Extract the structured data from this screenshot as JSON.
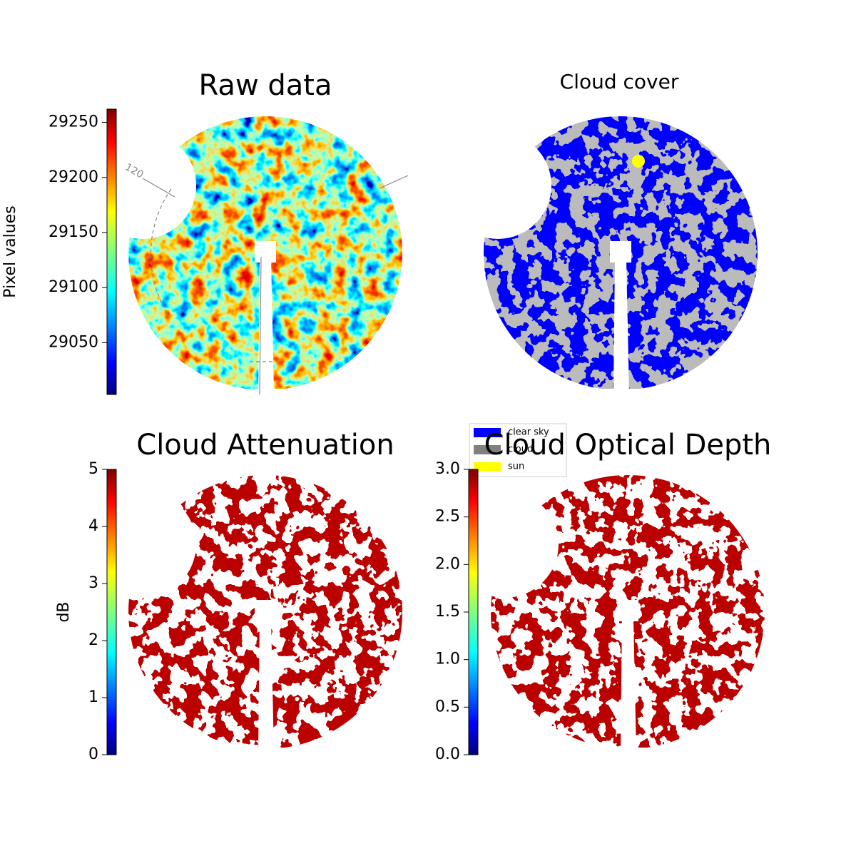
{
  "chart_data": [
    {
      "type": "image",
      "title": "Raw data",
      "colorbar_label": "Pixel values",
      "colormap": "jet",
      "clim": [
        29003,
        29262
      ],
      "cticks": [
        29050,
        29100,
        29150,
        29200,
        29250
      ],
      "annotations": [
        "120"
      ]
    },
    {
      "type": "image",
      "title": "Cloud cover",
      "legend": [
        {
          "name": "clear sky",
          "color": "#0000ff"
        },
        {
          "name": "cloud",
          "color": "#808080"
        },
        {
          "name": "sun",
          "color": "#ffff00"
        }
      ]
    },
    {
      "type": "image",
      "title": "Cloud Attenuation",
      "colorbar_label": "dB",
      "colormap": "jet",
      "clim": [
        0,
        5
      ],
      "cticks": [
        0,
        1,
        2,
        3,
        4,
        5
      ]
    },
    {
      "type": "image",
      "title": "Cloud Optical Depth",
      "colormap": "jet",
      "clim": [
        0,
        3
      ],
      "cticks": [
        {
          "value": 0,
          "label": "0.0"
        },
        0.5,
        {
          "value": 1,
          "label": "1.0"
        },
        1.5,
        {
          "value": 2,
          "label": "2.0"
        },
        2.5,
        {
          "value": 3,
          "label": "3.0"
        }
      ]
    }
  ]
}
